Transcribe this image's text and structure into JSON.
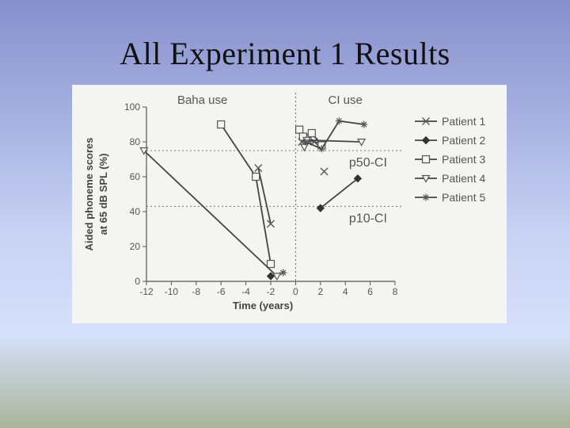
{
  "slide": {
    "title": "All Experiment 1 Results",
    "colors": {
      "background_top": "#8790cc",
      "background_mid": "#d6e0fb",
      "background_bottom": "#aab49a",
      "ink": "#555555"
    }
  },
  "chart_data": {
    "type": "line",
    "title": "",
    "xlabel": "Time (years)",
    "ylabel_lines": [
      "Aided phoneme scores",
      "at 65 dB SPL (%)"
    ],
    "xlim": [
      -12,
      8
    ],
    "ylim": [
      0,
      100
    ],
    "x_ticks": [
      -12,
      -10,
      -8,
      -6,
      -4,
      -2,
      0,
      2,
      4,
      6,
      8
    ],
    "y_ticks": [
      0,
      20,
      40,
      60,
      80,
      100
    ],
    "grid": false,
    "divider_x": 0,
    "region_labels": [
      "Baha use",
      "CI use"
    ],
    "reference_lines": [
      {
        "name": "p50-CI",
        "y": 75
      },
      {
        "name": "p10-CI",
        "y": 43
      }
    ],
    "legend_position": "right",
    "series": [
      {
        "name": "Patient 1",
        "marker": "x",
        "points": [
          [
            -3,
            65
          ],
          [
            -2,
            33
          ]
        ],
        "points_after": [
          [
            0.5,
            80
          ],
          [
            1,
            81
          ],
          [
            1.5,
            80
          ],
          [
            2,
            79
          ]
        ],
        "isolated": [
          [
            2.3,
            63
          ]
        ]
      },
      {
        "name": "Patient 2",
        "marker": "diamond",
        "points": [
          [
            -2,
            3
          ]
        ],
        "points_after": [
          [
            2,
            42
          ],
          [
            5,
            59
          ]
        ]
      },
      {
        "name": "Patient 3",
        "marker": "square",
        "points": [
          [
            -6,
            90
          ],
          [
            -3.2,
            60
          ],
          [
            -2,
            10
          ]
        ],
        "points_after": [
          [
            0.3,
            87
          ],
          [
            0.6,
            83
          ],
          [
            1.3,
            85
          ],
          [
            2.1,
            78
          ]
        ]
      },
      {
        "name": "Patient 4",
        "marker": "triangle-down",
        "points": [
          [
            -12.2,
            75
          ],
          [
            -1.5,
            3
          ]
        ],
        "points_after": [
          [
            0.7,
            77
          ],
          [
            0.9,
            81
          ],
          [
            5.3,
            80
          ]
        ]
      },
      {
        "name": "Patient 5",
        "marker": "asterisk",
        "points": [
          [
            -1,
            5
          ]
        ],
        "points_after": [
          [
            0.8,
            80
          ],
          [
            2.1,
            76
          ],
          [
            3.5,
            92
          ],
          [
            5.5,
            90
          ]
        ]
      }
    ]
  }
}
